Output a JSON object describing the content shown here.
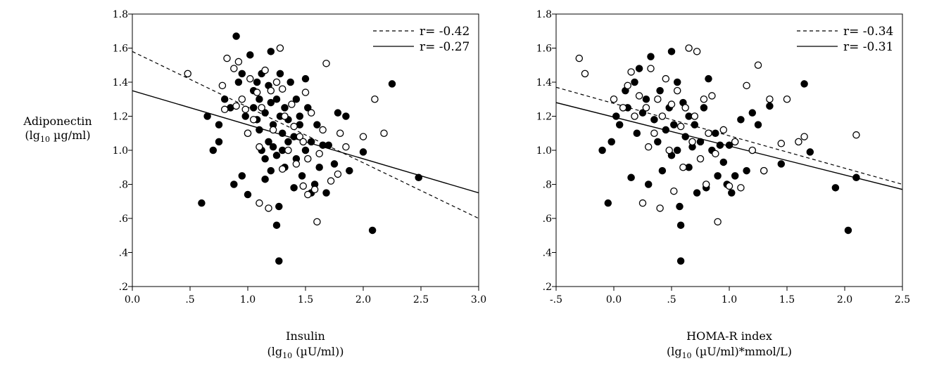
{
  "y_axis_label": {
    "line1": "Adiponectin",
    "line2_pre": "(lg",
    "line2_sub": "10",
    "line2_post": " µg/ml)"
  },
  "chart_data": [
    {
      "type": "scatter",
      "xlabel": {
        "line1": "Insulin",
        "line2_pre": "(lg",
        "line2_sub": "10",
        "line2_post": " (µU/ml))"
      },
      "xlim": [
        0.0,
        3.0
      ],
      "ylim": [
        0.2,
        1.8
      ],
      "x_ticks": [
        0.0,
        0.5,
        1.0,
        1.5,
        2.0,
        2.5,
        3.0
      ],
      "x_tick_labels": [
        "0.0",
        ".5",
        "1.0",
        "1.5",
        "2.0",
        "2.5",
        "3.0"
      ],
      "y_ticks": [
        0.2,
        0.4,
        0.6,
        0.8,
        1.0,
        1.2,
        1.4,
        1.6,
        1.8
      ],
      "y_tick_labels": [
        ".2",
        ".4",
        ".6",
        ".8",
        "1.0",
        "1.2",
        "1.4",
        "1.6",
        "1.8"
      ],
      "grid": false,
      "legend": {
        "placement": "top-right",
        "entries": [
          {
            "style": "dashed",
            "label": "r= -0.42"
          },
          {
            "style": "solid",
            "label": "r= -0.27"
          }
        ]
      },
      "regression_lines": [
        {
          "style": "dashed",
          "points": [
            [
              0.0,
              1.58
            ],
            [
              3.0,
              0.6
            ]
          ]
        },
        {
          "style": "solid",
          "points": [
            [
              0.0,
              1.35
            ],
            [
              3.0,
              0.75
            ]
          ]
        }
      ],
      "series": [
        {
          "marker": "filled",
          "points": [
            [
              0.6,
              0.69
            ],
            [
              0.65,
              1.2
            ],
            [
              0.7,
              1.0
            ],
            [
              0.75,
              1.15
            ],
            [
              0.75,
              1.05
            ],
            [
              0.8,
              1.3
            ],
            [
              0.85,
              1.25
            ],
            [
              0.88,
              0.8
            ],
            [
              0.9,
              1.67
            ],
            [
              0.92,
              1.4
            ],
            [
              0.95,
              1.45
            ],
            [
              0.95,
              0.85
            ],
            [
              0.98,
              1.2
            ],
            [
              1.0,
              1.1
            ],
            [
              1.0,
              0.74
            ],
            [
              1.02,
              1.56
            ],
            [
              1.05,
              1.35
            ],
            [
              1.05,
              1.25
            ],
            [
              1.08,
              1.4
            ],
            [
              1.08,
              1.18
            ],
            [
              1.1,
              1.3
            ],
            [
              1.1,
              1.12
            ],
            [
              1.12,
              1.0
            ],
            [
              1.12,
              1.45
            ],
            [
              1.15,
              0.95
            ],
            [
              1.15,
              1.22
            ],
            [
              1.15,
              0.83
            ],
            [
              1.18,
              1.38
            ],
            [
              1.18,
              1.05
            ],
            [
              1.2,
              1.28
            ],
            [
              1.2,
              1.58
            ],
            [
              1.2,
              0.88
            ],
            [
              1.22,
              1.15
            ],
            [
              1.22,
              1.02
            ],
            [
              1.25,
              1.3
            ],
            [
              1.25,
              0.97
            ],
            [
              1.25,
              0.56
            ],
            [
              1.27,
              0.35
            ],
            [
              1.27,
              0.67
            ],
            [
              1.28,
              1.2
            ],
            [
              1.28,
              1.45
            ],
            [
              1.3,
              1.1
            ],
            [
              1.3,
              1.0
            ],
            [
              1.32,
              0.9
            ],
            [
              1.32,
              1.25
            ],
            [
              1.35,
              1.05
            ],
            [
              1.35,
              1.18
            ],
            [
              1.37,
              1.4
            ],
            [
              1.4,
              1.08
            ],
            [
              1.4,
              0.78
            ],
            [
              1.42,
              1.3
            ],
            [
              1.42,
              0.95
            ],
            [
              1.45,
              1.15
            ],
            [
              1.45,
              1.2
            ],
            [
              1.47,
              0.85
            ],
            [
              1.5,
              1.0
            ],
            [
              1.5,
              1.42
            ],
            [
              1.52,
              1.25
            ],
            [
              1.55,
              1.05
            ],
            [
              1.55,
              0.75
            ],
            [
              1.58,
              0.8
            ],
            [
              1.6,
              1.15
            ],
            [
              1.62,
              0.9
            ],
            [
              1.65,
              1.03
            ],
            [
              1.68,
              0.75
            ],
            [
              1.7,
              1.03
            ],
            [
              1.75,
              0.92
            ],
            [
              1.78,
              1.22
            ],
            [
              1.85,
              1.2
            ],
            [
              1.88,
              0.88
            ],
            [
              2.0,
              0.99
            ],
            [
              2.08,
              0.53
            ],
            [
              2.25,
              1.39
            ],
            [
              2.48,
              0.84
            ]
          ]
        },
        {
          "marker": "open",
          "points": [
            [
              0.48,
              1.45
            ],
            [
              0.78,
              1.38
            ],
            [
              0.8,
              1.24
            ],
            [
              0.82,
              1.54
            ],
            [
              0.88,
              1.48
            ],
            [
              0.9,
              1.26
            ],
            [
              0.92,
              1.52
            ],
            [
              0.95,
              1.3
            ],
            [
              0.98,
              1.24
            ],
            [
              1.0,
              1.1
            ],
            [
              1.02,
              1.42
            ],
            [
              1.05,
              1.18
            ],
            [
              1.08,
              1.34
            ],
            [
              1.1,
              1.02
            ],
            [
              1.1,
              0.69
            ],
            [
              1.12,
              1.25
            ],
            [
              1.15,
              1.47
            ],
            [
              1.18,
              0.66
            ],
            [
              1.2,
              1.35
            ],
            [
              1.22,
              1.12
            ],
            [
              1.25,
              1.4
            ],
            [
              1.28,
              1.6
            ],
            [
              1.3,
              1.36
            ],
            [
              1.3,
              0.89
            ],
            [
              1.32,
              1.2
            ],
            [
              1.35,
              1.0
            ],
            [
              1.38,
              1.27
            ],
            [
              1.4,
              1.14
            ],
            [
              1.42,
              0.92
            ],
            [
              1.45,
              1.08
            ],
            [
              1.48,
              0.79
            ],
            [
              1.48,
              1.05
            ],
            [
              1.5,
              1.34
            ],
            [
              1.52,
              0.95
            ],
            [
              1.52,
              0.74
            ],
            [
              1.55,
              1.22
            ],
            [
              1.58,
              0.77
            ],
            [
              1.6,
              0.58
            ],
            [
              1.62,
              0.98
            ],
            [
              1.65,
              1.12
            ],
            [
              1.68,
              1.51
            ],
            [
              1.72,
              0.82
            ],
            [
              1.78,
              0.86
            ],
            [
              1.8,
              1.1
            ],
            [
              1.85,
              1.02
            ],
            [
              2.0,
              1.08
            ],
            [
              2.1,
              1.3
            ],
            [
              2.18,
              1.1
            ]
          ]
        }
      ]
    },
    {
      "type": "scatter",
      "xlabel": {
        "line1": "HOMA-R index",
        "line2_pre": "(lg",
        "line2_sub": "10",
        "line2_post": " (µU/ml)*mmol/L)"
      },
      "xlim": [
        -0.5,
        2.5
      ],
      "ylim": [
        0.2,
        1.8
      ],
      "x_ticks": [
        -0.5,
        0.0,
        0.5,
        1.0,
        1.5,
        2.0,
        2.5
      ],
      "x_tick_labels": [
        "-.5",
        "0.0",
        ".5",
        "1.0",
        "1.5",
        "2.0",
        "2.5"
      ],
      "y_ticks": [
        0.2,
        0.4,
        0.6,
        0.8,
        1.0,
        1.2,
        1.4,
        1.6,
        1.8
      ],
      "y_tick_labels": [
        ".2",
        ".4",
        ".6",
        ".8",
        "1.0",
        "1.2",
        "1.4",
        "1.6",
        "1.8"
      ],
      "grid": false,
      "legend": {
        "placement": "top-right",
        "entries": [
          {
            "style": "dashed",
            "label": "r= -0.34"
          },
          {
            "style": "solid",
            "label": "r= -0.31"
          }
        ]
      },
      "regression_lines": [
        {
          "style": "dashed",
          "points": [
            [
              -0.5,
              1.37
            ],
            [
              2.5,
              0.8
            ]
          ]
        },
        {
          "style": "solid",
          "points": [
            [
              -0.5,
              1.28
            ],
            [
              2.5,
              0.77
            ]
          ]
        }
      ],
      "series": [
        {
          "marker": "filled",
          "points": [
            [
              -0.1,
              1.0
            ],
            [
              -0.05,
              0.69
            ],
            [
              -0.02,
              1.05
            ],
            [
              0.02,
              1.2
            ],
            [
              0.05,
              1.15
            ],
            [
              0.1,
              1.35
            ],
            [
              0.12,
              1.25
            ],
            [
              0.15,
              0.84
            ],
            [
              0.18,
              1.4
            ],
            [
              0.2,
              1.1
            ],
            [
              0.22,
              1.48
            ],
            [
              0.25,
              1.22
            ],
            [
              0.28,
              1.3
            ],
            [
              0.3,
              0.8
            ],
            [
              0.32,
              1.55
            ],
            [
              0.35,
              1.18
            ],
            [
              0.38,
              1.05
            ],
            [
              0.4,
              1.35
            ],
            [
              0.42,
              0.88
            ],
            [
              0.45,
              1.12
            ],
            [
              0.48,
              1.25
            ],
            [
              0.5,
              1.58
            ],
            [
              0.5,
              0.97
            ],
            [
              0.52,
              1.15
            ],
            [
              0.55,
              1.4
            ],
            [
              0.55,
              1.0
            ],
            [
              0.57,
              0.67
            ],
            [
              0.58,
              0.56
            ],
            [
              0.58,
              0.35
            ],
            [
              0.6,
              1.28
            ],
            [
              0.62,
              1.08
            ],
            [
              0.65,
              1.2
            ],
            [
              0.65,
              0.9
            ],
            [
              0.68,
              1.02
            ],
            [
              0.7,
              1.15
            ],
            [
              0.72,
              0.75
            ],
            [
              0.75,
              1.05
            ],
            [
              0.78,
              1.25
            ],
            [
              0.8,
              0.78
            ],
            [
              0.82,
              1.42
            ],
            [
              0.85,
              1.0
            ],
            [
              0.88,
              1.1
            ],
            [
              0.9,
              0.85
            ],
            [
              0.92,
              1.03
            ],
            [
              0.95,
              0.93
            ],
            [
              0.98,
              0.8
            ],
            [
              1.0,
              1.03
            ],
            [
              1.02,
              0.75
            ],
            [
              1.05,
              0.85
            ],
            [
              1.1,
              1.18
            ],
            [
              1.15,
              0.88
            ],
            [
              1.2,
              1.22
            ],
            [
              1.25,
              1.15
            ],
            [
              1.3,
              0.88
            ],
            [
              1.35,
              1.26
            ],
            [
              1.45,
              0.92
            ],
            [
              1.65,
              1.39
            ],
            [
              1.7,
              0.99
            ],
            [
              1.92,
              0.78
            ],
            [
              2.03,
              0.53
            ],
            [
              2.1,
              0.84
            ]
          ]
        },
        {
          "marker": "open",
          "points": [
            [
              -0.3,
              1.54
            ],
            [
              -0.25,
              1.45
            ],
            [
              0.0,
              1.3
            ],
            [
              0.08,
              1.25
            ],
            [
              0.12,
              1.38
            ],
            [
              0.15,
              1.46
            ],
            [
              0.18,
              1.2
            ],
            [
              0.22,
              1.32
            ],
            [
              0.25,
              0.69
            ],
            [
              0.28,
              1.25
            ],
            [
              0.3,
              1.02
            ],
            [
              0.32,
              1.48
            ],
            [
              0.35,
              1.1
            ],
            [
              0.38,
              1.3
            ],
            [
              0.4,
              0.66
            ],
            [
              0.42,
              1.2
            ],
            [
              0.45,
              1.42
            ],
            [
              0.48,
              1.0
            ],
            [
              0.5,
              1.27
            ],
            [
              0.52,
              0.76
            ],
            [
              0.55,
              1.35
            ],
            [
              0.58,
              1.14
            ],
            [
              0.6,
              0.9
            ],
            [
              0.62,
              1.25
            ],
            [
              0.65,
              1.6
            ],
            [
              0.68,
              1.05
            ],
            [
              0.7,
              1.2
            ],
            [
              0.72,
              1.58
            ],
            [
              0.75,
              0.95
            ],
            [
              0.78,
              1.3
            ],
            [
              0.8,
              0.8
            ],
            [
              0.82,
              1.1
            ],
            [
              0.85,
              1.32
            ],
            [
              0.88,
              0.98
            ],
            [
              0.9,
              0.58
            ],
            [
              0.95,
              1.12
            ],
            [
              1.0,
              0.79
            ],
            [
              1.05,
              1.05
            ],
            [
              1.1,
              0.78
            ],
            [
              1.15,
              1.38
            ],
            [
              1.2,
              1.0
            ],
            [
              1.25,
              1.5
            ],
            [
              1.3,
              0.88
            ],
            [
              1.35,
              1.3
            ],
            [
              1.45,
              1.04
            ],
            [
              1.5,
              1.3
            ],
            [
              1.6,
              1.05
            ],
            [
              1.65,
              1.08
            ],
            [
              2.1,
              1.09
            ]
          ]
        }
      ]
    }
  ]
}
